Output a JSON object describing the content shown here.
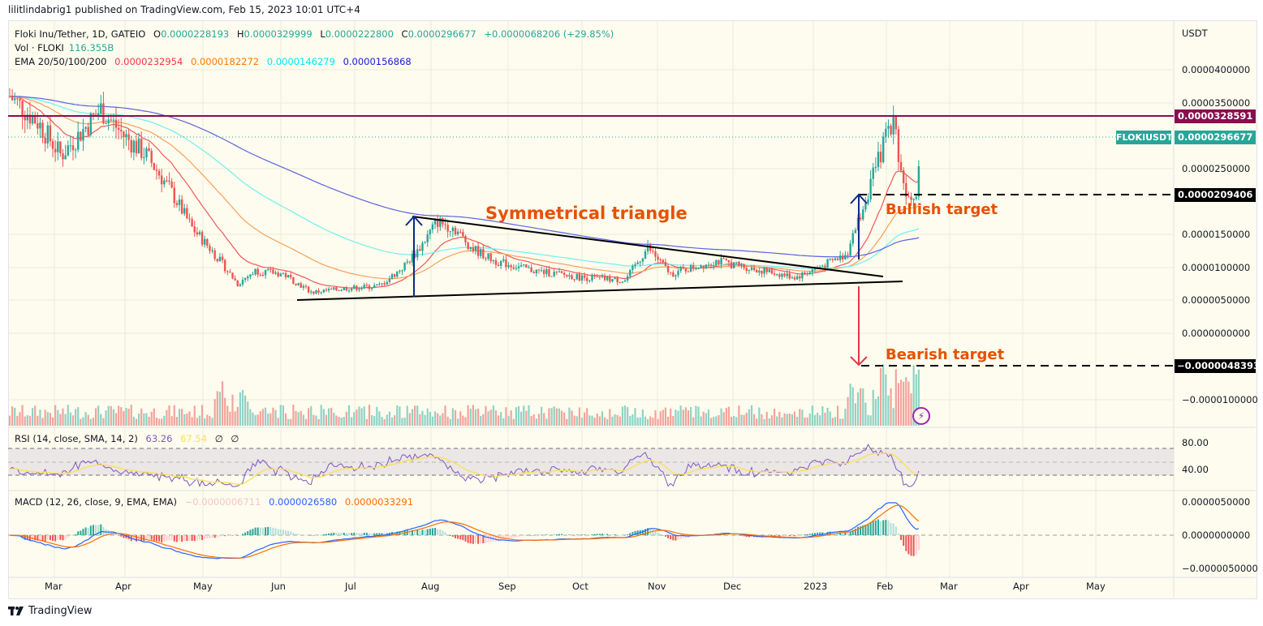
{
  "publish_bar": {
    "text": "lilitlindabrig1 published on TradingView.com, Feb 15, 2023 10:01 UTC+4"
  },
  "footer": {
    "brand": "TradingView"
  },
  "legend": {
    "symbol": "Floki Inu/Tether, 1D, GATEIO",
    "open_label": "O",
    "open": "0.0000228193",
    "high_label": "H",
    "high": "0.0000329999",
    "low_label": "L",
    "low": "0.0000222800",
    "close_label": "C",
    "close": "0.0000296677",
    "change": "+0.0000068206 (+29.85%)",
    "vol_label": "Vol · FLOKI",
    "vol": "116.355B",
    "ema_label": "EMA 20/50/100/200",
    "ema20": "0.0000232954",
    "ema50": "0.0000182272",
    "ema100": "0.0000146279",
    "ema200": "0.0000156868",
    "rsi_label": "RSI (14, close, SMA, 14, 2)",
    "rsi": "63.26",
    "rsi_sma": "67.54",
    "rsi_na1": "∅",
    "rsi_na2": "∅",
    "macd_label": "MACD (12, 26, close, 9, EMA, EMA)",
    "macd_hist": "−0.0000006711",
    "macd": "0.0000026580",
    "macd_signal": "0.0000033291"
  },
  "colors": {
    "up": "#26a69a",
    "down": "#ef5350",
    "vol_up": "#8fd3c6",
    "vol_down": "#f3a39c",
    "ema20": "#f2565a",
    "ema50": "#f7a05b",
    "ema100": "#6ff0f0",
    "ema200": "#5b63e0",
    "resistance": "#880e4f",
    "annotation": "#e65100",
    "bull_arrow": "#0d2a8a",
    "bear_arrow": "#e53945",
    "rsi": "#7e57c2",
    "rsi_sma": "#fbe15a",
    "macd": "#2962ff",
    "signal": "#ff6d00",
    "bg": "#fdfcee"
  },
  "price_axis": {
    "currency": "USDT",
    "ticks": [
      "0.0000400000",
      "0.0000350000",
      "0.0000250000",
      "0.0000150000",
      "0.0000100000",
      "0.0000050000",
      "0.0000000000",
      "−0.0000100000"
    ],
    "labels": {
      "resistance": "0.0000328591",
      "symbol_tag": "FLOKIUSDT",
      "last": "0.0000296677",
      "bullish_target": "0.0000209406",
      "bearish_target": "−0.0000048393"
    }
  },
  "rsi_axis": {
    "ticks": [
      "80.00",
      "40.00"
    ]
  },
  "macd_axis": {
    "ticks": [
      "0.0000050000",
      "0.0000000000",
      "−0.0000050000"
    ]
  },
  "time_axis": {
    "ticks": [
      "Mar",
      "Apr",
      "May",
      "Jun",
      "Jul",
      "Aug",
      "Sep",
      "Oct",
      "Nov",
      "Dec",
      "2023",
      "Feb",
      "Mar",
      "Apr",
      "May"
    ]
  },
  "annotations": {
    "pattern": "Symmetrical triangle",
    "bullish": "Bullish target",
    "bearish": "Bearish target"
  },
  "chart_data": {
    "type": "candlestick",
    "title": "Floki Inu/Tether, 1D, GATEIO",
    "xlabel": "",
    "ylabel": "USDT",
    "ylim": [
      -1.3e-05,
      4.5e-05
    ],
    "x": [
      "2022-03",
      "2022-04",
      "2022-05",
      "2022-06",
      "2022-07",
      "2022-08",
      "2022-09",
      "2022-10",
      "2022-11",
      "2022-12",
      "2023-01",
      "2023-02"
    ],
    "close_approx": [
      3e-05,
      3.3e-05,
      2e-05,
      7e-06,
      7.5e-06,
      1.6e-05,
      1e-05,
      8.5e-06,
      1.1e-05,
      9.5e-06,
      1.1e-05,
      2.97e-05
    ],
    "price_keypoints": [
      {
        "x": 0,
        "y": 3.6e-05
      },
      {
        "x": 25,
        "y": 3.2e-05
      },
      {
        "x": 45,
        "y": 2.7e-05
      },
      {
        "x": 60,
        "y": 3e-05
      },
      {
        "x": 80,
        "y": 3.4e-05
      },
      {
        "x": 100,
        "y": 3e-05
      },
      {
        "x": 120,
        "y": 2.7e-05
      },
      {
        "x": 140,
        "y": 2.2e-05
      },
      {
        "x": 160,
        "y": 1.6e-05
      },
      {
        "x": 180,
        "y": 1.2e-05
      },
      {
        "x": 200,
        "y": 7.5e-06
      },
      {
        "x": 215,
        "y": 9.5e-06
      },
      {
        "x": 240,
        "y": 9e-06
      },
      {
        "x": 265,
        "y": 6.2e-06
      },
      {
        "x": 295,
        "y": 6.8e-06
      },
      {
        "x": 325,
        "y": 7.2e-06
      },
      {
        "x": 345,
        "y": 1e-05
      },
      {
        "x": 360,
        "y": 1.3e-05
      },
      {
        "x": 375,
        "y": 1.7e-05
      },
      {
        "x": 390,
        "y": 1.6e-05
      },
      {
        "x": 405,
        "y": 1.3e-05
      },
      {
        "x": 425,
        "y": 1.1e-05
      },
      {
        "x": 460,
        "y": 9.5e-06
      },
      {
        "x": 500,
        "y": 8.5e-06
      },
      {
        "x": 540,
        "y": 8e-06
      },
      {
        "x": 560,
        "y": 1.3e-05
      },
      {
        "x": 580,
        "y": 9e-06
      },
      {
        "x": 620,
        "y": 1.1e-05
      },
      {
        "x": 660,
        "y": 9.5e-06
      },
      {
        "x": 690,
        "y": 8.5e-06
      },
      {
        "x": 710,
        "y": 1e-05
      },
      {
        "x": 735,
        "y": 1.2e-05
      },
      {
        "x": 760,
        "y": 2.5e-05
      },
      {
        "x": 775,
        "y": 3.3e-05
      },
      {
        "x": 785,
        "y": 2.2e-05
      },
      {
        "x": 795,
        "y": 2.1e-05
      },
      {
        "x": 800,
        "y": 2.97e-05
      }
    ],
    "volume_peak_label": "116.355B",
    "series": [
      {
        "name": "EMA 20",
        "last": 2.32954e-05
      },
      {
        "name": "EMA 50",
        "last": 1.82272e-05
      },
      {
        "name": "EMA 100",
        "last": 1.46279e-05
      },
      {
        "name": "EMA 200",
        "last": 1.56868e-05
      },
      {
        "name": "RSI 14",
        "last": 63.26
      },
      {
        "name": "RSI SMA 14",
        "last": 67.54
      },
      {
        "name": "MACD",
        "last": 2.658e-06
      },
      {
        "name": "Signal",
        "last": 3.3291e-06
      },
      {
        "name": "Histogram",
        "last": -6.711e-07
      }
    ],
    "levels": {
      "resistance": 3.28591e-05,
      "bullish_target": 2.09406e-05,
      "bearish_target": -4.8393e-06
    },
    "triangle": {
      "upper": [
        [
          508,
          267
        ],
        [
          1088,
          341
        ]
      ],
      "lower": [
        [
          366,
          370
        ],
        [
          1112,
          347
        ]
      ]
    }
  }
}
